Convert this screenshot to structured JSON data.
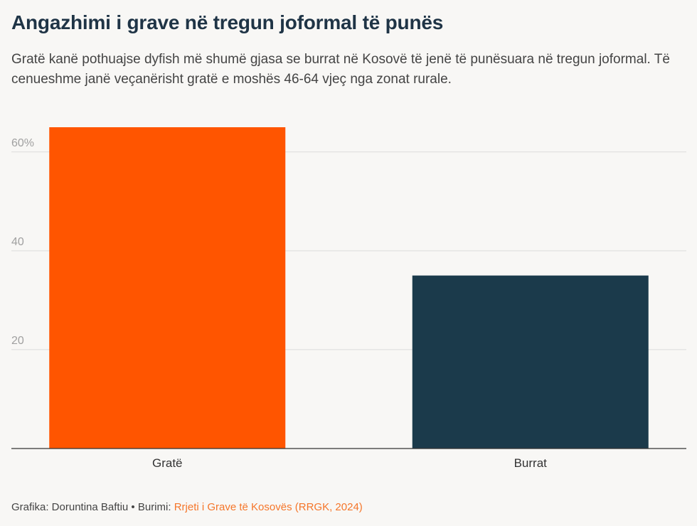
{
  "header": {
    "title": "Angazhimi i grave në tregun joformal të punës",
    "subtitle": "Gratë kanë pothuajse dyfish më shumë gjasa se burrat në Kosovë të jenë të punësuara në tregun joformal. Të cenueshme janë veçanërisht gratë e moshës 46-64 vjeç nga zonat rurale."
  },
  "chart_data": {
    "type": "bar",
    "categories": [
      "Gratë",
      "Burrat"
    ],
    "values": [
      65,
      35
    ],
    "colors": [
      "#ff5500",
      "#1b3a4b"
    ],
    "ylim": [
      0,
      65
    ],
    "yticks": [
      20,
      40,
      60
    ],
    "ytick_labels": [
      "20",
      "40",
      "60%"
    ],
    "grid": true,
    "xlabel": "",
    "ylabel": ""
  },
  "footer": {
    "credit": "Grafika: Doruntina Baftiu",
    "separator": " • ",
    "source_label": "Burimi: ",
    "source_name": "Rrjeti i Grave të Kosovës (RRGK, 2024)"
  }
}
